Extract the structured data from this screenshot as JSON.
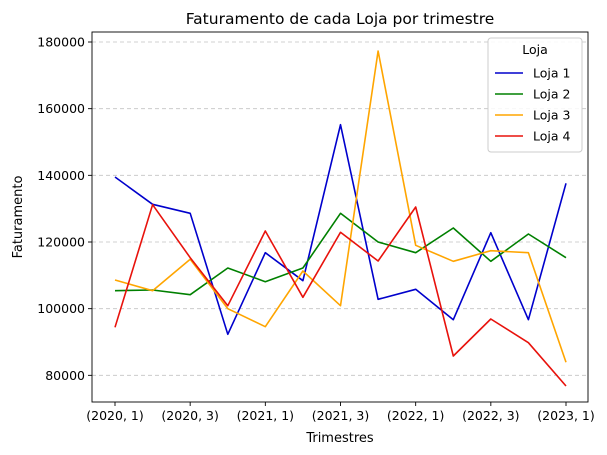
{
  "chart_data": {
    "type": "line",
    "title": "Faturamento de cada Loja por trimestre",
    "xlabel": "Trimestres",
    "ylabel": "Faturamento",
    "categories": [
      "(2020, 1)",
      "(2020, 2)",
      "(2020, 3)",
      "(2020, 4)",
      "(2021, 1)",
      "(2021, 2)",
      "(2021, 3)",
      "(2021, 4)",
      "(2022, 1)",
      "(2022, 2)",
      "(2022, 3)",
      "(2022, 4)",
      "(2023, 1)"
    ],
    "x_tick_labels": [
      "(2020, 1)",
      "(2020, 3)",
      "(2021, 1)",
      "(2021, 3)",
      "(2022, 1)",
      "(2022, 3)",
      "(2023, 1)"
    ],
    "y_ticks": [
      80000,
      100000,
      120000,
      140000,
      160000,
      180000
    ],
    "ylim": [
      72000,
      183000
    ],
    "grid": "horizontal dashed",
    "legend_title": "Loja",
    "legend_position": "top-right",
    "series": [
      {
        "name": "Loja 1",
        "color": "#0000cc",
        "values": [
          139500,
          131300,
          128600,
          92300,
          116800,
          108400,
          155200,
          102800,
          105800,
          96700,
          122800,
          96700,
          137600
        ]
      },
      {
        "name": "Loja 2",
        "color": "#008000",
        "values": [
          105400,
          105600,
          104200,
          112200,
          108100,
          112200,
          128600,
          120000,
          116800,
          124200,
          114200,
          122400,
          115300
        ]
      },
      {
        "name": "Loja 3",
        "color": "#ffa500",
        "values": [
          108600,
          105400,
          114800,
          100000,
          94600,
          111300,
          100900,
          177300,
          119000,
          114200,
          117400,
          116800,
          83900
        ]
      },
      {
        "name": "Loja 4",
        "color": "#e8120c",
        "values": [
          94400,
          131200,
          115300,
          100900,
          123300,
          103400,
          122900,
          114300,
          130500,
          85800,
          96900,
          89800,
          76800
        ]
      }
    ]
  }
}
